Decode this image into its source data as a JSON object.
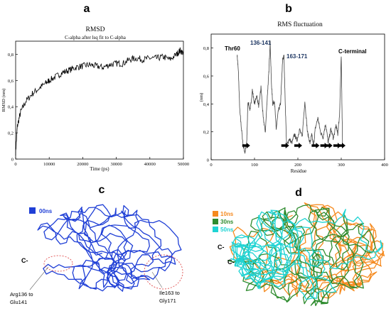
{
  "panels": {
    "a": {
      "letter": "a"
    },
    "b": {
      "letter": "b"
    },
    "c": {
      "letter": "c"
    },
    "d": {
      "letter": "d"
    }
  },
  "chart_data": [
    {
      "type": "line",
      "panel": "a",
      "title": "RMSD",
      "subtitle": "C-alpha after lsq fit to C-alpha",
      "xlabel": "Time (ps)",
      "ylabel": "RMSD (nm)",
      "xlim": [
        0,
        50000
      ],
      "ylim": [
        0,
        0.9
      ],
      "x_ticks": [
        "0",
        "10000",
        "20000",
        "30000",
        "40000",
        "50000"
      ],
      "y_ticks": [
        "0",
        "0,2",
        "0,4",
        "0,6",
        "0,8"
      ],
      "grid": false,
      "series": [
        {
          "color": "#000000",
          "x": [
            0,
            500,
            1500,
            3000,
            5000,
            7000,
            9000,
            10000,
            12000,
            14000,
            16000,
            18000,
            20000,
            22000,
            24000,
            26000,
            28000,
            30000,
            32000,
            34000,
            36000,
            38000,
            40000,
            42000,
            44000,
            46000,
            48000,
            49000,
            50000
          ],
          "y": [
            0.05,
            0.25,
            0.36,
            0.44,
            0.5,
            0.54,
            0.58,
            0.6,
            0.63,
            0.66,
            0.68,
            0.7,
            0.71,
            0.72,
            0.71,
            0.7,
            0.72,
            0.73,
            0.73,
            0.76,
            0.77,
            0.76,
            0.77,
            0.77,
            0.78,
            0.76,
            0.8,
            0.83,
            0.81
          ]
        }
      ]
    },
    {
      "type": "line",
      "panel": "b",
      "title": "RMS fluctuation",
      "xlabel": "Residue",
      "ylabel": "(nm)",
      "xlim": [
        0,
        400
      ],
      "ylim": [
        0,
        0.9
      ],
      "x_ticks": [
        "0",
        "100",
        "200",
        "300",
        "400"
      ],
      "y_ticks": [
        "0",
        "0,2",
        "0,4",
        "0,6",
        "0,8"
      ],
      "grid": false,
      "annotations": [
        {
          "text": "Thr60",
          "color": "#000000"
        },
        {
          "text": "136-141",
          "color": "#1f3864"
        },
        {
          "text": "163-171",
          "color": "#1f3864"
        },
        {
          "text": "C-terminal",
          "color": "#000000"
        }
      ],
      "arrows_residues": [
        80,
        170,
        200,
        240,
        260,
        270,
        290,
        300
      ],
      "series": [
        {
          "color": "#444444",
          "x": [
            60,
            63,
            66,
            70,
            74,
            78,
            82,
            85,
            90,
            95,
            100,
            105,
            110,
            115,
            120,
            125,
            130,
            133,
            136,
            139,
            142,
            146,
            150,
            155,
            160,
            165,
            168,
            170,
            174,
            180,
            186,
            192,
            198,
            204,
            210,
            216,
            222,
            228,
            232,
            236,
            240,
            246,
            252,
            258,
            264,
            270,
            276,
            282,
            288,
            292,
            296,
            300,
            303
          ],
          "y": [
            0.75,
            0.62,
            0.35,
            0.22,
            0.1,
            0.05,
            0.12,
            0.42,
            0.35,
            0.5,
            0.4,
            0.46,
            0.38,
            0.52,
            0.3,
            0.2,
            0.48,
            0.62,
            0.85,
            0.55,
            0.4,
            0.42,
            0.22,
            0.35,
            0.4,
            0.72,
            0.74,
            0.5,
            0.1,
            0.15,
            0.12,
            0.18,
            0.14,
            0.22,
            0.16,
            0.42,
            0.2,
            0.12,
            0.18,
            0.1,
            0.22,
            0.3,
            0.2,
            0.16,
            0.26,
            0.12,
            0.22,
            0.15,
            0.25,
            0.18,
            0.32,
            0.74,
            0.1
          ]
        }
      ]
    },
    {
      "type": "other",
      "panel": "c",
      "legend": [
        {
          "label": "00ns",
          "color": "#1f3fd6"
        }
      ],
      "labels": [
        "C-",
        "Arg136 to",
        "Glu141",
        "Ile163 to",
        "Gly171"
      ]
    },
    {
      "type": "other",
      "panel": "d",
      "legend": [
        {
          "label": "10ns",
          "color": "#f58a1f"
        },
        {
          "label": "30ns",
          "color": "#2e8b2e"
        },
        {
          "label": "50ns",
          "color": "#1fd3d3"
        }
      ],
      "labels": [
        "C-",
        "C-"
      ]
    }
  ]
}
